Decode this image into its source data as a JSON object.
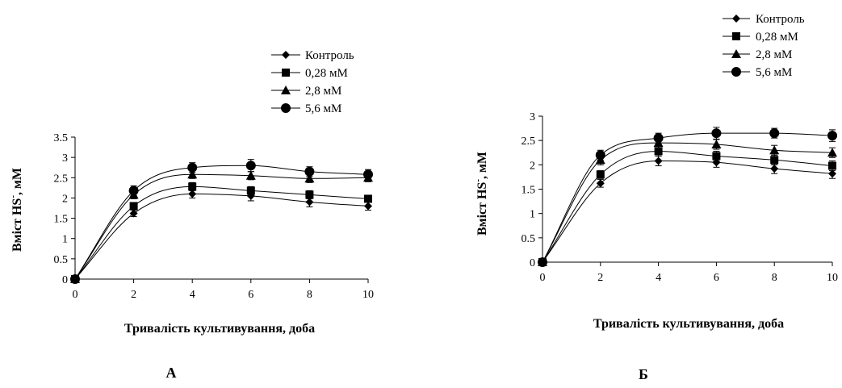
{
  "chart_data": [
    {
      "type": "line",
      "panel_label": "А",
      "xlabel": "Тривалість культивування, доба",
      "ylabel": "Вміст HS",
      "ylabel_sup": "-",
      "ylabel_unit": ", мМ",
      "x": [
        0,
        2,
        4,
        6,
        8,
        10
      ],
      "xlim": [
        0,
        10
      ],
      "ylim": [
        0,
        3.5
      ],
      "x_ticks": [
        "0",
        "2",
        "4",
        "6",
        "8",
        "10"
      ],
      "y_ticks": [
        "0",
        "0.5",
        "1",
        "1.5",
        "2",
        "2.5",
        "3",
        "3.5"
      ],
      "grid": false,
      "legend_position": "top-right",
      "series": [
        {
          "name": "Контроль",
          "marker": "diamond",
          "values": [
            0,
            1.62,
            2.1,
            2.05,
            1.9,
            1.8
          ],
          "errors": [
            0,
            0.08,
            0.1,
            0.12,
            0.12,
            0.1
          ]
        },
        {
          "name": "0,28 мМ",
          "marker": "square",
          "values": [
            0,
            1.8,
            2.28,
            2.18,
            2.08,
            1.98
          ],
          "errors": [
            0,
            0.08,
            0.1,
            0.1,
            0.1,
            0.08
          ]
        },
        {
          "name": "2,8 мМ",
          "marker": "triangle",
          "values": [
            0,
            2.08,
            2.58,
            2.55,
            2.48,
            2.5
          ],
          "errors": [
            0,
            0.1,
            0.1,
            0.1,
            0.1,
            0.1
          ]
        },
        {
          "name": "5,6 мМ",
          "marker": "circle",
          "values": [
            0,
            2.18,
            2.75,
            2.8,
            2.65,
            2.58
          ],
          "errors": [
            0,
            0.12,
            0.12,
            0.15,
            0.12,
            0.12
          ]
        }
      ]
    },
    {
      "type": "line",
      "panel_label": "Б",
      "xlabel": "Тривалість культивування, доба",
      "ylabel": "Вміст HS",
      "ylabel_sup": "-",
      "ylabel_unit": ", мМ",
      "x": [
        0,
        2,
        4,
        6,
        8,
        10
      ],
      "xlim": [
        0,
        10
      ],
      "ylim": [
        0,
        3
      ],
      "x_ticks": [
        "0",
        "2",
        "4",
        "6",
        "8",
        "10"
      ],
      "y_ticks": [
        "0",
        "0.5",
        "1",
        "1.5",
        "2",
        "2.5",
        "3"
      ],
      "grid": false,
      "legend_position": "top-right",
      "series": [
        {
          "name": "Контроль",
          "marker": "diamond",
          "values": [
            0,
            1.62,
            2.08,
            2.05,
            1.92,
            1.82
          ],
          "errors": [
            0,
            0.08,
            0.1,
            0.1,
            0.1,
            0.1
          ]
        },
        {
          "name": "0,28 мМ",
          "marker": "square",
          "values": [
            0,
            1.8,
            2.28,
            2.18,
            2.1,
            1.98
          ],
          "errors": [
            0,
            0.08,
            0.1,
            0.1,
            0.1,
            0.1
          ]
        },
        {
          "name": "2,8 мМ",
          "marker": "triangle",
          "values": [
            0,
            2.1,
            2.45,
            2.42,
            2.3,
            2.25
          ],
          "errors": [
            0,
            0.1,
            0.1,
            0.1,
            0.1,
            0.1
          ]
        },
        {
          "name": "5,6 мМ",
          "marker": "circle",
          "values": [
            0,
            2.2,
            2.55,
            2.65,
            2.65,
            2.6
          ],
          "errors": [
            0,
            0.1,
            0.1,
            0.12,
            0.1,
            0.12
          ]
        }
      ]
    }
  ]
}
